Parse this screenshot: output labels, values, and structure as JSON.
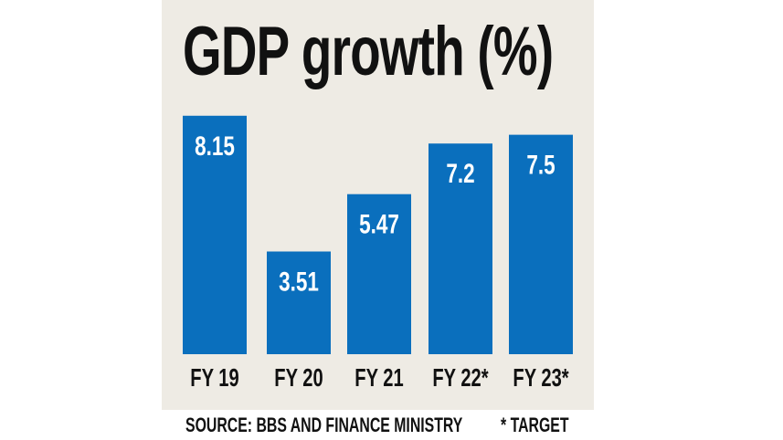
{
  "chart_data": {
    "type": "bar",
    "title": "GDP growth (%)",
    "categories": [
      "FY 19",
      "FY 20",
      "FY 21",
      "FY 22*",
      "FY 23*"
    ],
    "values": [
      8.15,
      3.51,
      5.47,
      7.2,
      7.5
    ],
    "value_labels": [
      "8.15",
      "3.51",
      "5.47",
      "7.2",
      "7.5"
    ],
    "xlabel": "",
    "ylabel": "",
    "ylim": [
      0,
      9
    ],
    "grid": false,
    "bar_color": "#0a6fbd",
    "background_color": "#eeebe4",
    "source": "SOURCE: BBS AND FINANCE MINISTRY",
    "footnote": "* TARGET"
  }
}
